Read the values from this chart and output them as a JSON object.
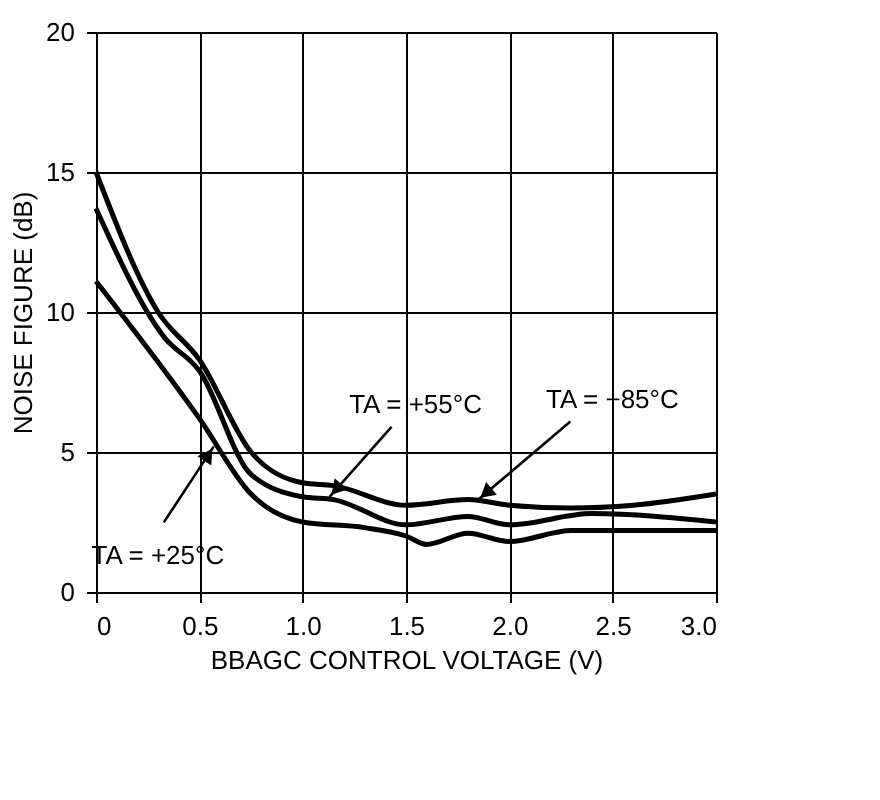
{
  "chart_data": {
    "type": "line",
    "xlabel": "BBAGC CONTROL VOLTAGE (V)",
    "ylabel": "NOISE FIGURE (dB)",
    "xlim": [
      0,
      3
    ],
    "ylim": [
      0,
      20
    ],
    "xticks": [
      0,
      0.5,
      {
        "value": 1,
        "label": "1.0"
      },
      1.5,
      {
        "value": 2,
        "label": "2.0"
      },
      2.5,
      {
        "value": 3,
        "label": "3.0"
      }
    ],
    "yticks": [
      0,
      5,
      10,
      15,
      20
    ],
    "grid": true,
    "marker": "none",
    "line_style": "solid",
    "series": [
      {
        "color": "#000000",
        "x": [
          0,
          0.3,
          0.5,
          0.75,
          1.0,
          1.15,
          1.5,
          1.8,
          2.0,
          2.3,
          2.6,
          3.0
        ],
        "values": [
          15.0,
          10.0,
          8.3,
          5.0,
          3.9,
          3.8,
          3.1,
          3.3,
          3.1,
          3.0,
          3.1,
          3.5
        ]
      },
      {
        "color": "#000000",
        "x": [
          0,
          0.33,
          0.5,
          0.75,
          1.0,
          1.15,
          1.5,
          1.8,
          2.0,
          2.4,
          3.0
        ],
        "values": [
          13.7,
          9.1,
          7.9,
          4.2,
          3.4,
          3.3,
          2.4,
          2.7,
          2.4,
          2.8,
          2.5
        ]
      },
      {
        "color": "#000000",
        "x": [
          0,
          0.5,
          0.75,
          1.0,
          1.3,
          1.5,
          1.6,
          1.8,
          2.0,
          2.3,
          3.0
        ],
        "values": [
          11.1,
          6.2,
          3.5,
          2.5,
          2.3,
          2.0,
          1.7,
          2.1,
          1.8,
          2.2,
          2.2
        ]
      }
    ],
    "annotations": [
      {
        "text": "TA = +55°C",
        "x": 1.13,
        "y": 3.4
      },
      {
        "text": "TA = +85°C",
        "x": 1.85,
        "y": 3.3
      },
      {
        "text": "TA = +25°C",
        "x": 0.57,
        "y": 5.2
      }
    ]
  }
}
